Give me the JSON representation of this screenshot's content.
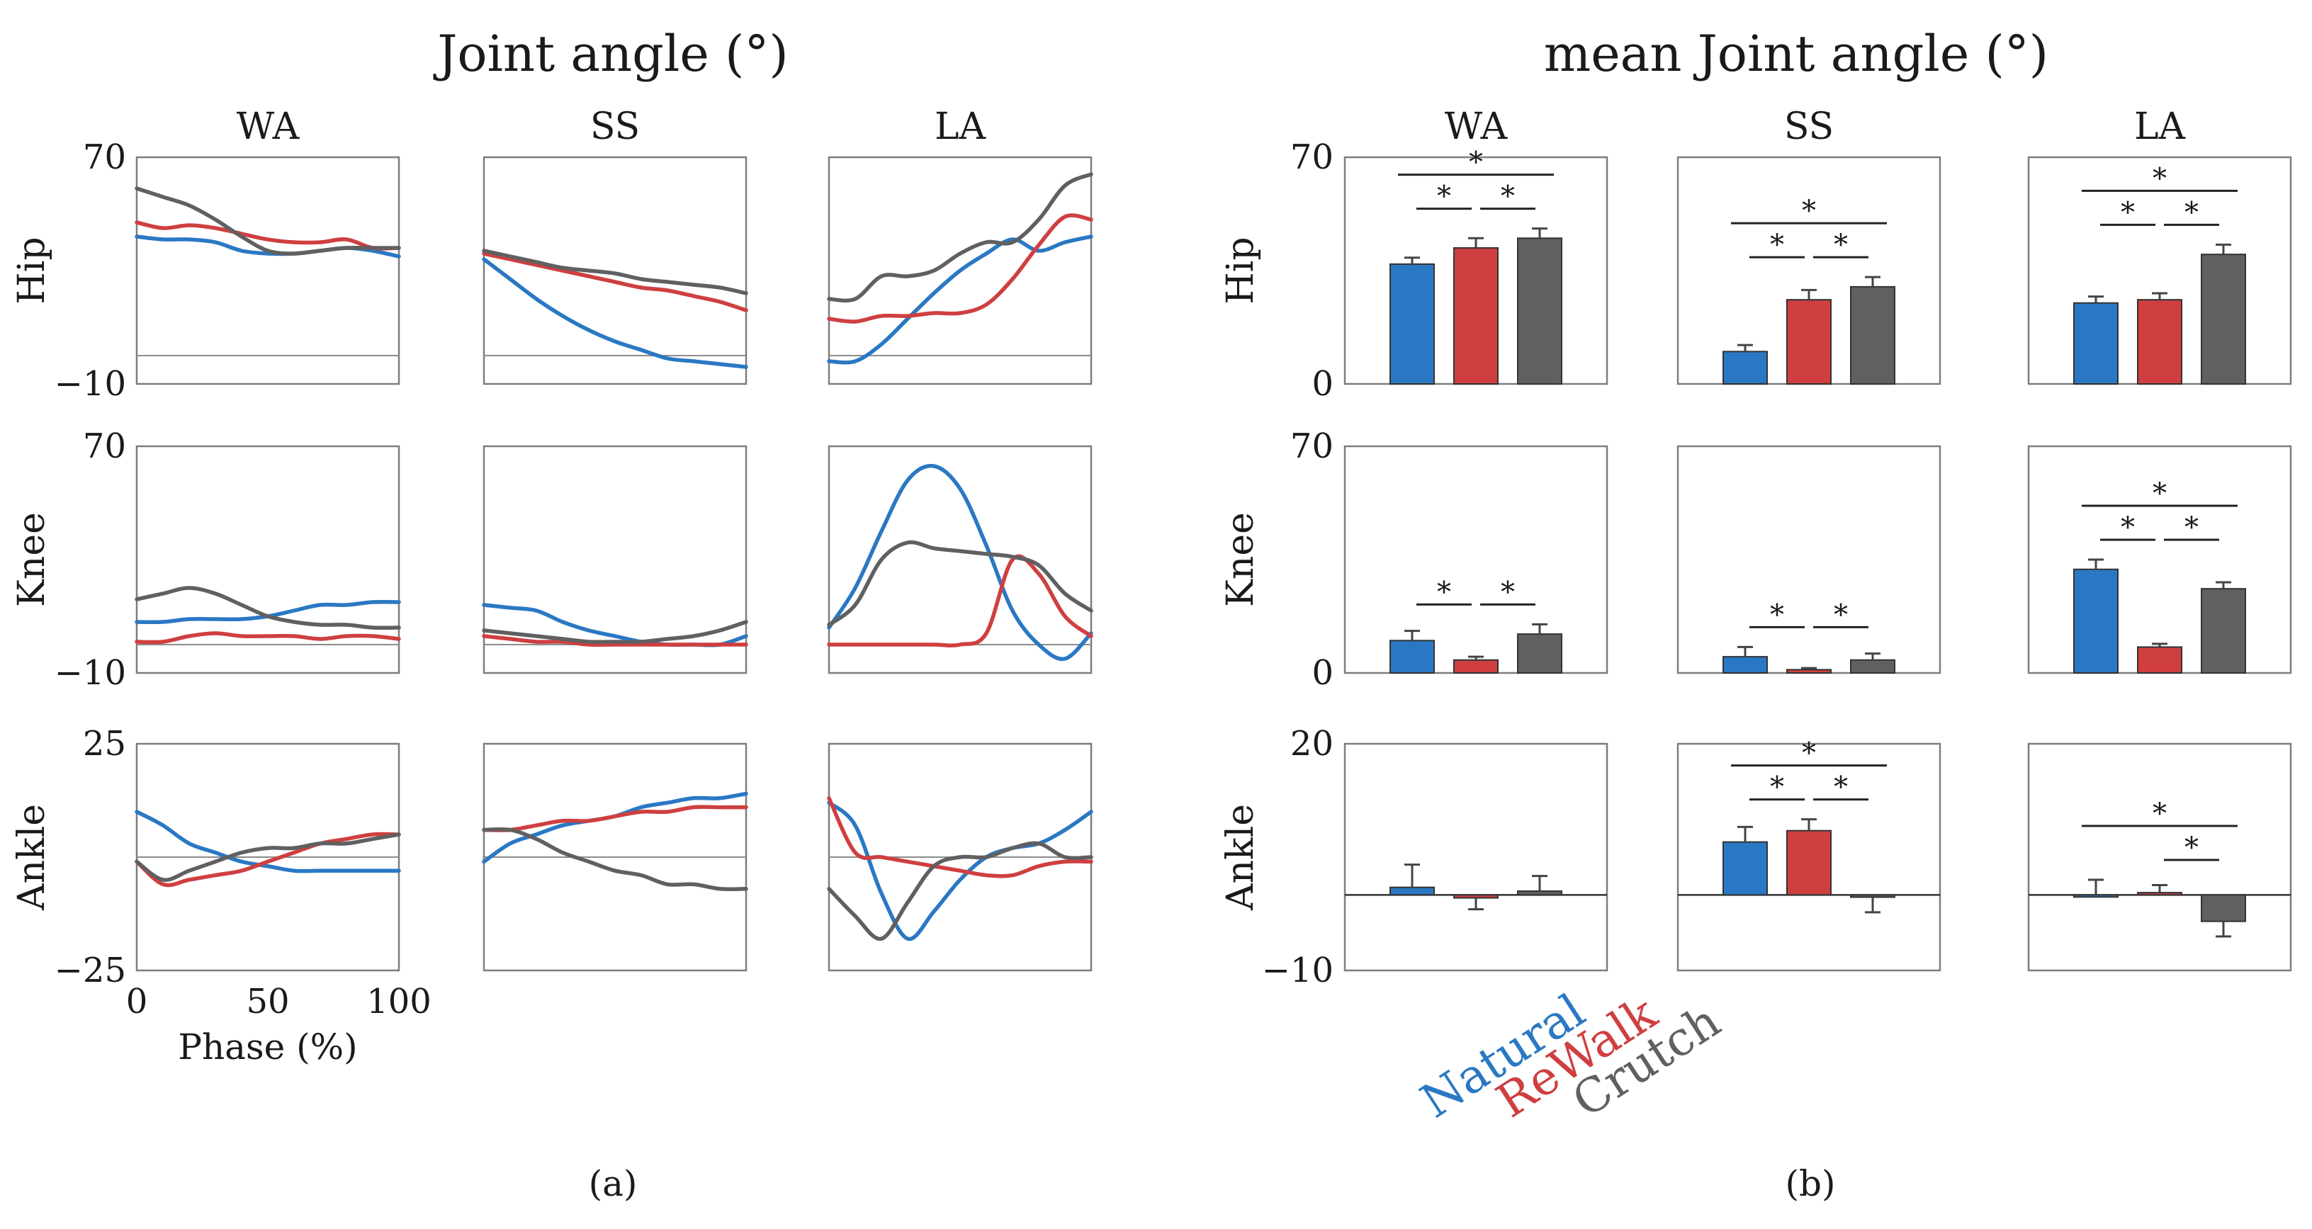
{
  "figure": {
    "left_title": "Joint angle (°)",
    "right_title": "mean Joint angle (°)",
    "left_caption": "(a)",
    "right_caption": "(b)",
    "x_axis_label": "Phase (%)",
    "colors": {
      "Natural": "#2a78c3",
      "ReWalk": "#cf3f40",
      "Crutch": "#606060"
    },
    "legend": [
      "Natural",
      "ReWalk",
      "Crutch"
    ],
    "significance_marker": "*"
  },
  "chart_data": [
    {
      "type": "line",
      "title": "Joint angle (°)",
      "columns": [
        "WA",
        "SS",
        "LA"
      ],
      "rows": [
        {
          "name": "Hip",
          "ylim": [
            -10,
            70
          ],
          "ytick_labels": [
            "70",
            "−10"
          ]
        },
        {
          "name": "Knee",
          "ylim": [
            -10,
            70
          ],
          "ytick_labels": [
            "70",
            "−10"
          ]
        },
        {
          "name": "Ankle",
          "ylim": [
            -25,
            25
          ],
          "ytick_labels": [
            "25",
            "−25"
          ]
        }
      ],
      "xlabel": "Phase (%)",
      "xlim": [
        0,
        100
      ],
      "xtick_labels": [
        "0",
        "50",
        "100"
      ],
      "x": [
        0,
        10,
        20,
        30,
        40,
        50,
        60,
        70,
        80,
        90,
        100
      ],
      "series_order": [
        "Natural",
        "ReWalk",
        "Crutch"
      ],
      "panels": {
        "Hip": {
          "WA": {
            "Natural": [
              42,
              41,
              41,
              40,
              37,
              36,
              36,
              37,
              38,
              37,
              35
            ],
            "ReWalk": [
              47,
              45,
              46,
              45,
              43,
              41,
              40,
              40,
              41,
              38,
              38
            ],
            "Crutch": [
              59,
              56,
              53,
              48,
              42,
              37,
              36,
              37,
              38,
              38,
              38
            ]
          },
          "SS": {
            "Natural": [
              34,
              27,
              20,
              14,
              9,
              5,
              2,
              -1,
              -2,
              -3,
              -4
            ],
            "ReWalk": [
              36,
              34,
              32,
              30,
              28,
              26,
              24,
              23,
              21,
              19,
              16
            ],
            "Crutch": [
              37,
              35,
              33,
              31,
              30,
              29,
              27,
              26,
              25,
              24,
              22
            ]
          },
          "LA": {
            "Natural": [
              -2,
              -2,
              4,
              13,
              22,
              30,
              36,
              41,
              37,
              40,
              42
            ],
            "ReWalk": [
              13,
              12,
              14,
              14,
              15,
              15,
              18,
              27,
              39,
              49,
              48
            ],
            "Crutch": [
              20,
              20,
              28,
              28,
              30,
              36,
              40,
              40,
              48,
              60,
              64
            ]
          }
        },
        "Knee": {
          "WA": {
            "Natural": [
              8,
              8,
              9,
              9,
              9,
              10,
              12,
              14,
              14,
              15,
              15
            ],
            "ReWalk": [
              1,
              1,
              3,
              4,
              3,
              3,
              3,
              2,
              3,
              3,
              2
            ],
            "Crutch": [
              16,
              18,
              20,
              18,
              14,
              10,
              8,
              7,
              7,
              6,
              6
            ]
          },
          "SS": {
            "Natural": [
              14,
              13,
              12,
              8,
              5,
              3,
              1,
              0,
              0,
              0,
              3
            ],
            "ReWalk": [
              3,
              2,
              1,
              1,
              0,
              0,
              0,
              0,
              0,
              0,
              0
            ],
            "Crutch": [
              5,
              4,
              3,
              2,
              1,
              1,
              1,
              2,
              3,
              5,
              8
            ]
          },
          "LA": {
            "Natural": [
              6,
              20,
              40,
              58,
              63,
              55,
              35,
              12,
              0,
              -5,
              4
            ],
            "ReWalk": [
              0,
              0,
              0,
              0,
              0,
              0,
              4,
              30,
              25,
              10,
              3
            ],
            "Crutch": [
              7,
              14,
              30,
              36,
              34,
              33,
              32,
              31,
              28,
              18,
              12
            ]
          }
        },
        "Ankle": {
          "WA": {
            "Natural": [
              10,
              7,
              3,
              1,
              -1,
              -2,
              -3,
              -3,
              -3,
              -3,
              -3
            ],
            "ReWalk": [
              -1,
              -6,
              -5,
              -4,
              -3,
              -1,
              1,
              3,
              4,
              5,
              5
            ],
            "Crutch": [
              -1,
              -5,
              -3,
              -1,
              1,
              2,
              2,
              3,
              3,
              4,
              5
            ]
          },
          "SS": {
            "Natural": [
              -1,
              3,
              5,
              7,
              8,
              9,
              11,
              12,
              13,
              13,
              14
            ],
            "ReWalk": [
              6,
              6,
              7,
              8,
              8,
              9,
              10,
              10,
              11,
              11,
              11
            ],
            "Crutch": [
              6,
              6,
              4,
              1,
              -1,
              -3,
              -4,
              -6,
              -6,
              -7,
              -7
            ]
          },
          "LA": {
            "Natural": [
              12,
              7,
              -8,
              -18,
              -12,
              -5,
              0,
              2,
              3,
              6,
              10
            ],
            "ReWalk": [
              13,
              1,
              0,
              -1,
              -2,
              -3,
              -4,
              -4,
              -2,
              -1,
              -1
            ],
            "Crutch": [
              -7,
              -13,
              -18,
              -10,
              -2,
              0,
              0,
              2,
              3,
              0,
              0
            ]
          }
        }
      }
    },
    {
      "type": "bar",
      "title": "mean Joint angle (°)",
      "columns": [
        "WA",
        "SS",
        "LA"
      ],
      "rows": [
        {
          "name": "Hip",
          "ylim": [
            0,
            70
          ],
          "ytick_labels": [
            "70",
            "0"
          ]
        },
        {
          "name": "Knee",
          "ylim": [
            0,
            70
          ],
          "ytick_labels": [
            "70",
            "0"
          ]
        },
        {
          "name": "Ankle",
          "ylim": [
            -10,
            20
          ],
          "ytick_labels": [
            "20",
            "−10"
          ]
        }
      ],
      "categories": [
        "Natural",
        "ReWalk",
        "Crutch"
      ],
      "values": {
        "Hip": {
          "WA": [
            37,
            42,
            45
          ],
          "SS": [
            10,
            26,
            30
          ],
          "LA": [
            25,
            26,
            40
          ]
        },
        "Knee": {
          "WA": [
            10,
            4,
            12
          ],
          "SS": [
            5,
            1,
            4
          ],
          "LA": [
            32,
            8,
            26
          ]
        },
        "Ankle": {
          "WA": [
            1,
            -0.4,
            0.5
          ],
          "SS": [
            7,
            8.5,
            -0.3
          ],
          "LA": [
            0,
            0.3,
            -3.5
          ]
        }
      },
      "errors": {
        "Hip": {
          "WA": [
            2,
            3,
            3
          ],
          "SS": [
            2,
            3,
            3
          ],
          "LA": [
            2,
            2,
            3
          ]
        },
        "Knee": {
          "WA": [
            3,
            1,
            3
          ],
          "SS": [
            3,
            0.5,
            2
          ],
          "LA": [
            3,
            1,
            2
          ]
        },
        "Ankle": {
          "WA": [
            3,
            1.5,
            2
          ],
          "SS": [
            2,
            1.5,
            2
          ],
          "LA": [
            2,
            1,
            2
          ]
        }
      },
      "significance": {
        "Hip": {
          "WA": [
            [
              0,
              1
            ],
            [
              1,
              2
            ],
            [
              0,
              2
            ]
          ],
          "SS": [
            [
              0,
              1
            ],
            [
              1,
              2
            ],
            [
              0,
              2
            ]
          ],
          "LA": [
            [
              0,
              1
            ],
            [
              1,
              2
            ],
            [
              0,
              2
            ]
          ]
        },
        "Knee": {
          "WA": [
            [
              0,
              1
            ],
            [
              1,
              2
            ]
          ],
          "SS": [
            [
              0,
              1
            ],
            [
              1,
              2
            ]
          ],
          "LA": [
            [
              0,
              1
            ],
            [
              1,
              2
            ],
            [
              0,
              2
            ]
          ]
        },
        "Ankle": {
          "WA": [],
          "SS": [
            [
              0,
              1
            ],
            [
              1,
              2
            ],
            [
              0,
              2
            ]
          ],
          "LA": [
            [
              1,
              2
            ],
            [
              0,
              2
            ]
          ]
        }
      }
    }
  ]
}
